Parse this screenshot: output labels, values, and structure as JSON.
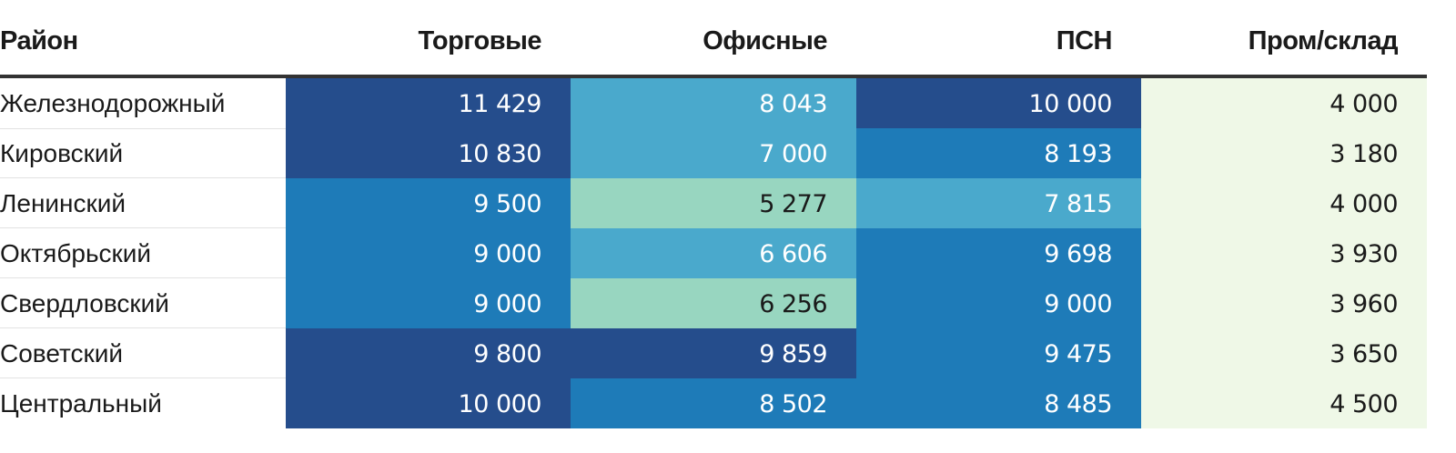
{
  "chart_data": {
    "type": "heatmap",
    "columns": [
      "Район",
      "Торговые",
      "Офисные",
      "ПСН",
      "Пром/склад"
    ],
    "rows": [
      {
        "name": "Железнодорожный",
        "values": [
          11429,
          8043,
          10000,
          4000
        ],
        "labels": [
          "11 429",
          "8 043",
          "10 000",
          "4 000"
        ]
      },
      {
        "name": "Кировский",
        "values": [
          10830,
          7000,
          8193,
          3180
        ],
        "labels": [
          "10 830",
          "7 000",
          "8 193",
          "3 180"
        ]
      },
      {
        "name": "Ленинский",
        "values": [
          9500,
          5277,
          7815,
          4000
        ],
        "labels": [
          "9 500",
          "5 277",
          "7 815",
          "4 000"
        ]
      },
      {
        "name": "Октябрьский",
        "values": [
          9000,
          6606,
          9698,
          3930
        ],
        "labels": [
          "9 000",
          "6 606",
          "9 698",
          "3 930"
        ]
      },
      {
        "name": "Свердловский",
        "values": [
          9000,
          6256,
          9000,
          3960
        ],
        "labels": [
          "9 000",
          "6 256",
          "9 000",
          "3 960"
        ]
      },
      {
        "name": "Советский",
        "values": [
          9800,
          9859,
          9475,
          3650
        ],
        "labels": [
          "9 800",
          "9 859",
          "9 475",
          "3 650"
        ]
      },
      {
        "name": "Центральный",
        "values": [
          10000,
          8502,
          8485,
          4500
        ],
        "labels": [
          "10 000",
          "8 502",
          "8 485",
          "4 500"
        ]
      }
    ],
    "colors": {
      "darkest": "#254d8c",
      "dark": "#1e7bb8",
      "mid": "#4aa9cc",
      "light": "#98d6c0",
      "lightest": "#eff8e7",
      "text_on_dark": "#ffffff",
      "text_on_light": "#1a1a1a"
    }
  }
}
